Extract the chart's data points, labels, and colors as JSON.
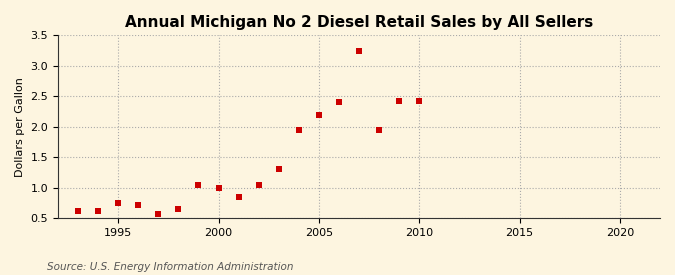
{
  "title": "Annual Michigan No 2 Diesel Retail Sales by All Sellers",
  "ylabel": "Dollars per Gallon",
  "source": "Source: U.S. Energy Information Administration",
  "fig_background_color": "#fdf5e0",
  "plot_background_color": "#fdf5e0",
  "marker_color": "#cc0000",
  "xlim": [
    1992,
    2022
  ],
  "ylim": [
    0.5,
    3.5
  ],
  "xticks": [
    1995,
    2000,
    2005,
    2010,
    2015,
    2020
  ],
  "yticks": [
    0.5,
    1.0,
    1.5,
    2.0,
    2.5,
    3.0,
    3.5
  ],
  "years": [
    1993,
    1994,
    1995,
    1996,
    1997,
    1998,
    1999,
    2000,
    2001,
    2002,
    2003,
    2004,
    2005,
    2006,
    2007,
    2008,
    2009,
    2010
  ],
  "values": [
    0.62,
    0.62,
    0.75,
    0.72,
    0.57,
    0.65,
    1.05,
    1.0,
    0.85,
    1.05,
    1.31,
    1.95,
    2.2,
    2.4,
    3.24,
    1.95,
    2.42,
    2.42
  ],
  "title_fontsize": 11,
  "ylabel_fontsize": 8,
  "tick_fontsize": 8,
  "source_fontsize": 7.5,
  "grid_color": "#aaaaaa",
  "grid_linestyle": ":",
  "grid_linewidth": 0.8,
  "spine_color": "#333333",
  "marker_size": 18
}
